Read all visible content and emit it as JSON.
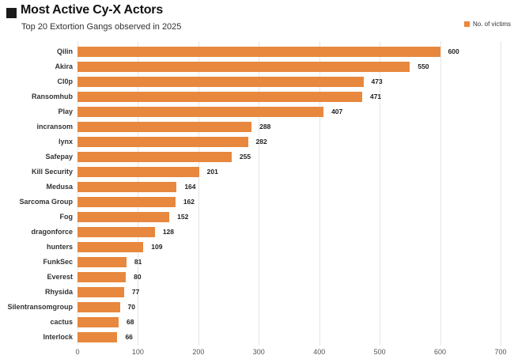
{
  "header": {
    "title": "Most Active Cy-X Actors",
    "subtitle": "Top 20 Extortion Gangs observed in 2025",
    "marker_color": "#1a1a1a"
  },
  "legend": {
    "label": "No. of victims",
    "swatch_color": "#e7883e"
  },
  "chart_data": {
    "type": "bar",
    "orientation": "horizontal",
    "title": "Most Active Cy-X Actors",
    "subtitle": "Top 20 Extortion Gangs observed in 2025",
    "series_name": "No. of victims",
    "categories": [
      "Qilin",
      "Akira",
      "Cl0p",
      "Ransomhub",
      "Play",
      "incransom",
      "lynx",
      "Safepay",
      "Kill Security",
      "Medusa",
      "Sarcoma Group",
      "Fog",
      "dragonforce",
      "hunters",
      "FunkSec",
      "Everest",
      "Rhysida",
      "Silentransomgroup",
      "cactus",
      "Interlock"
    ],
    "values": [
      600,
      550,
      473,
      471,
      407,
      288,
      282,
      255,
      201,
      164,
      162,
      152,
      128,
      109,
      81,
      80,
      77,
      70,
      68,
      66
    ],
    "xlim": [
      0,
      700
    ],
    "xticks": [
      0,
      100,
      200,
      300,
      400,
      500,
      600,
      700
    ],
    "bar_color": "#e7883e",
    "grid": "vertical",
    "legend_position": "top-right",
    "data_labels": true
  }
}
